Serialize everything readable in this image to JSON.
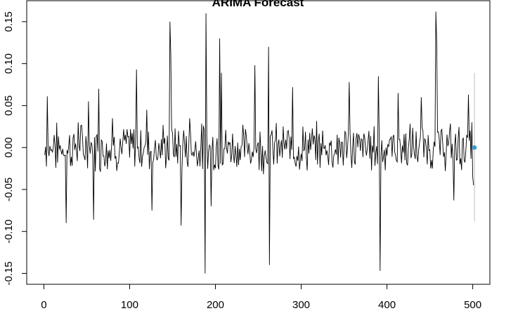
{
  "chart_data": {
    "type": "line",
    "title": "ARIMA Forecast",
    "xlabel": "",
    "ylabel": "",
    "xlim": [
      -20,
      520
    ],
    "ylim": [
      -0.163,
      0.175
    ],
    "x_ticks": [
      0,
      100,
      200,
      300,
      400,
      500
    ],
    "y_ticks": [
      -0.15,
      -0.1,
      -0.05,
      0.0,
      0.05,
      0.1,
      0.15
    ],
    "x_tick_labels": [
      "0",
      "100",
      "200",
      "300",
      "400",
      "500"
    ],
    "y_tick_labels": [
      "-0.15",
      "-0.10",
      "-0.05",
      "0.00",
      "0.05",
      "0.10",
      "0.15"
    ],
    "grid": false,
    "series": [
      {
        "color": "#000000",
        "x_start": 1,
        "x_step": 1,
        "anchors": [
          [
            1,
            -0.009
          ],
          [
            4,
            0.061
          ],
          [
            12,
            0.015
          ],
          [
            26,
            -0.09
          ],
          [
            40,
            0.03
          ],
          [
            52,
            0.055
          ],
          [
            58,
            -0.086
          ],
          [
            64,
            0.07
          ],
          [
            80,
            0.035
          ],
          [
            108,
            0.093
          ],
          [
            120,
            0.045
          ],
          [
            126,
            -0.075
          ],
          [
            147,
            0.15
          ],
          [
            148,
            0.11
          ],
          [
            160,
            -0.093
          ],
          [
            170,
            0.035
          ],
          [
            188,
            -0.15
          ],
          [
            189,
            0.16
          ],
          [
            195,
            -0.07
          ],
          [
            205,
            0.13
          ],
          [
            207,
            0.089
          ],
          [
            246,
            0.098
          ],
          [
            262,
            0.12
          ],
          [
            263,
            -0.14
          ],
          [
            290,
            0.072
          ],
          [
            356,
            0.078
          ],
          [
            390,
            0.085
          ],
          [
            392,
            -0.147
          ],
          [
            413,
            0.065
          ],
          [
            440,
            0.06
          ],
          [
            457,
            0.162
          ],
          [
            458,
            0.125
          ],
          [
            478,
            -0.063
          ],
          [
            495,
            0.063
          ],
          [
            499,
            0.03
          ],
          [
            500,
            -0.035
          ],
          [
            501,
            -0.045
          ]
        ],
        "seed": 7,
        "amplitude": 0.022
      }
    ],
    "forecast": {
      "x": 502,
      "value": 0.0,
      "lower": -0.088,
      "upper": 0.089,
      "point_color": "#2e9bd6",
      "interval_color": "#bdbdbd"
    }
  }
}
